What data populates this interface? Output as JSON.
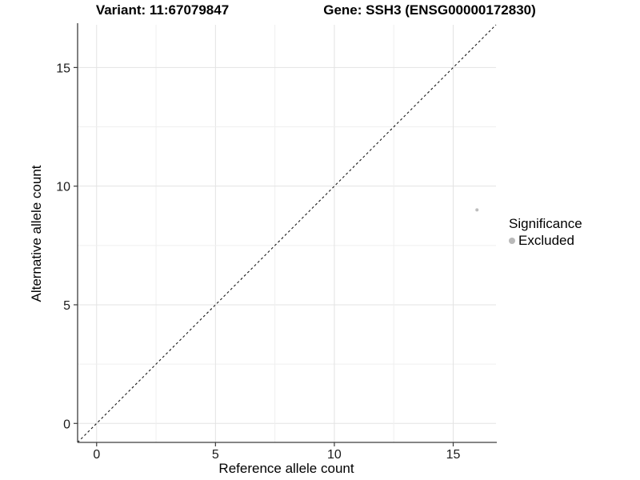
{
  "titles": {
    "variant": "Variant: 11:67079847",
    "gene": "Gene: SSH3 (ENSG00000172830)"
  },
  "axes": {
    "x_label": "Reference allele count",
    "y_label": "Alternative allele count"
  },
  "legend": {
    "title": "Significance",
    "items": [
      {
        "label": "Excluded",
        "color": "#b9b9b9"
      }
    ]
  },
  "chart_data": {
    "type": "scatter",
    "title": "Variant: 11:67079847   Gene: SSH3 (ENSG00000172830)",
    "xlabel": "Reference allele count",
    "ylabel": "Alternative allele count",
    "xlim": [
      -0.8,
      16.8
    ],
    "ylim": [
      -0.8,
      16.8
    ],
    "xticks": [
      0,
      5,
      10,
      15
    ],
    "yticks": [
      0,
      5,
      10,
      15
    ],
    "grid": true,
    "grid_step": 2.5,
    "legend_position": "right",
    "series": [
      {
        "name": "Excluded",
        "points": [
          {
            "x": 16,
            "y": 9
          }
        ],
        "color": "#bdbdbd",
        "point_radius": 2
      }
    ],
    "reference_line": {
      "type": "identity y=x",
      "style": "dashed",
      "color": "#1a1a1a",
      "span": [
        -0.8,
        16.8
      ]
    },
    "colors": {
      "grid_major": "#e3e3e3",
      "grid_minor": "#efefef",
      "axis_line": "#3c3c3c",
      "tick_label": "#1a1a1a"
    }
  }
}
